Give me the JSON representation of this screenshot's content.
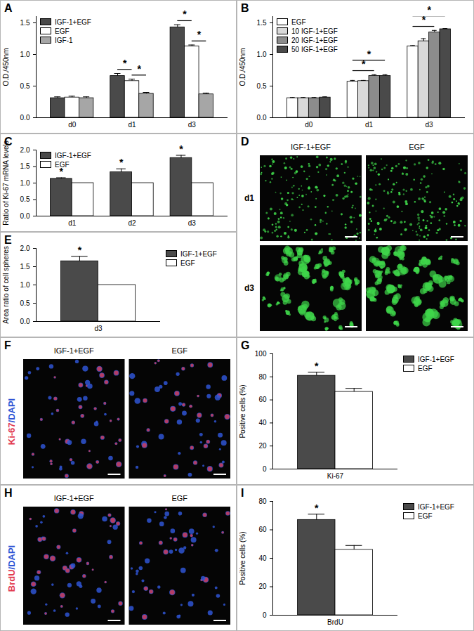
{
  "chart_data": [
    {
      "panel": "A",
      "type": "bar",
      "ylabel": "O.D./450nm",
      "categories": [
        "d0",
        "d1",
        "d3"
      ],
      "series": [
        {
          "name": "IGF-1+EGF",
          "color": "#4a4a4a",
          "values": [
            0.31,
            0.66,
            1.43
          ],
          "errors": [
            0.02,
            0.04,
            0.04
          ]
        },
        {
          "name": "EGF",
          "color": "#ffffff",
          "values": [
            0.32,
            0.58,
            1.13
          ],
          "errors": [
            0.02,
            0.03,
            0.02
          ]
        },
        {
          "name": "IGF-1",
          "color": "#a6a6a6",
          "values": [
            0.31,
            0.38,
            0.37
          ],
          "errors": [
            0.02,
            0.02,
            0.02
          ]
        }
      ],
      "ylim": [
        0,
        1.6
      ],
      "yticks": [
        {
          "value": 0,
          "label": "0.0"
        },
        {
          "value": 0.5,
          "label": "0.5"
        },
        {
          "value": 1,
          "label": "1.0"
        },
        {
          "value": 1.5,
          "label": "1.5"
        }
      ],
      "legend": "top-left",
      "significance": [
        {
          "category": "d1",
          "between": [
            "IGF-1+EGF",
            "EGF"
          ],
          "label": "*"
        },
        {
          "category": "d1",
          "between": [
            "EGF",
            "IGF-1"
          ],
          "label": "*"
        },
        {
          "category": "d3",
          "between": [
            "IGF-1+EGF",
            "EGF"
          ],
          "label": "*"
        },
        {
          "category": "d3",
          "between": [
            "EGF",
            "IGF-1"
          ],
          "label": "*"
        }
      ]
    },
    {
      "panel": "B",
      "type": "bar",
      "ylabel": "O.D./450nm",
      "categories": [
        "d0",
        "d1",
        "d3"
      ],
      "series": [
        {
          "name": "EGF",
          "color": "#ffffff",
          "values": [
            0.31,
            0.57,
            1.13
          ],
          "errors": [
            0.01,
            0.02,
            0.01
          ]
        },
        {
          "name": "10 IGF-1+EGF",
          "color": "#d9d9d9",
          "values": [
            0.31,
            0.58,
            1.21
          ],
          "errors": [
            0.01,
            0.01,
            0.04
          ]
        },
        {
          "name": "20 IGF-1+EGF",
          "color": "#8c8c8c",
          "values": [
            0.31,
            0.66,
            1.35
          ],
          "errors": [
            0.01,
            0.02,
            0.03
          ]
        },
        {
          "name": "50 IGF-1+EGF",
          "color": "#4a4a4a",
          "values": [
            0.32,
            0.66,
            1.4
          ],
          "errors": [
            0.01,
            0.02,
            0.01
          ]
        }
      ],
      "ylim": [
        0,
        1.6
      ],
      "yticks": [
        {
          "value": 0,
          "label": "0.0"
        },
        {
          "value": 0.5,
          "label": "0.5"
        },
        {
          "value": 1,
          "label": "1.0"
        },
        {
          "value": 1.5,
          "label": "1.5"
        }
      ],
      "legend": "top-left",
      "significance": [
        {
          "category": "d1",
          "between": [
            "EGF",
            "20 IGF-1+EGF"
          ],
          "label": "*"
        },
        {
          "category": "d1",
          "between": [
            "EGF",
            "50 IGF-1+EGF"
          ],
          "label": "*"
        },
        {
          "category": "d3",
          "between": [
            "EGF",
            "20 IGF-1+EGF"
          ],
          "label": "*"
        },
        {
          "category": "d3",
          "between": [
            "EGF",
            "50 IGF-1+EGF"
          ],
          "label": "*"
        }
      ]
    },
    {
      "panel": "C",
      "type": "bar",
      "ylabel": "Ratio of Ki-67 mRNA levels",
      "categories": [
        "d1",
        "d2",
        "d3"
      ],
      "series": [
        {
          "name": "IGF-1+EGF",
          "color": "#4a4a4a",
          "values": [
            1.13,
            1.33,
            1.76
          ],
          "errors": [
            0.03,
            0.1,
            0.08
          ]
        },
        {
          "name": "EGF",
          "color": "#ffffff",
          "values": [
            1,
            1,
            1
          ],
          "errors": null
        }
      ],
      "ylim": [
        0,
        2
      ],
      "yticks": [
        {
          "value": 0,
          "label": "0.0"
        },
        {
          "value": 0.5,
          "label": "0.5"
        },
        {
          "value": 1,
          "label": "1.0"
        },
        {
          "value": 1.5,
          "label": "1.5"
        },
        {
          "value": 2,
          "label": "2.0"
        }
      ],
      "legend": "top-left",
      "significance": [
        {
          "category": "d1",
          "series": "IGF-1+EGF",
          "label": "*"
        },
        {
          "category": "d2",
          "series": "IGF-1+EGF",
          "label": "*"
        },
        {
          "category": "d3",
          "series": "IGF-1+EGF",
          "label": "*"
        }
      ]
    },
    {
      "panel": "E",
      "type": "bar",
      "ylabel": "Area ratio of cell spheres",
      "categories": [
        "d3"
      ],
      "series": [
        {
          "name": "IGF-1+EGF",
          "color": "#4a4a4a",
          "values": [
            1.65
          ],
          "errors": [
            0.13
          ]
        },
        {
          "name": "EGF",
          "color": "#ffffff",
          "values": [
            1
          ],
          "errors": null
        }
      ],
      "ylim": [
        0,
        2
      ],
      "yticks": [
        {
          "value": 0,
          "label": "0.0"
        },
        {
          "value": 0.5,
          "label": "0.5"
        },
        {
          "value": 1,
          "label": "1.0"
        },
        {
          "value": 1.5,
          "label": "1.5"
        },
        {
          "value": 2,
          "label": "2.0"
        }
      ],
      "legend": "top-right",
      "significance": [
        {
          "category": "d3",
          "series": "IGF-1+EGF",
          "label": "*"
        }
      ]
    },
    {
      "panel": "G",
      "type": "bar",
      "ylabel": "Positive cells (%)",
      "categories": [
        "Ki-67"
      ],
      "series": [
        {
          "name": "IGF-1+EGF",
          "color": "#4a4a4a",
          "values": [
            81
          ],
          "errors": [
            3
          ]
        },
        {
          "name": "EGF",
          "color": "#ffffff",
          "values": [
            67
          ],
          "errors": [
            3
          ]
        }
      ],
      "ylim": [
        0,
        100
      ],
      "yticks": [
        0,
        20,
        40,
        60,
        80,
        100
      ],
      "legend": "top-right",
      "significance": [
        {
          "category": "Ki-67",
          "series": "IGF-1+EGF",
          "label": "*"
        }
      ]
    },
    {
      "panel": "I",
      "type": "bar",
      "ylabel": "Positive cells (%)",
      "categories": [
        "BrdU"
      ],
      "series": [
        {
          "name": "IGF-1+EGF",
          "color": "#4a4a4a",
          "values": [
            67
          ],
          "errors": [
            4
          ]
        },
        {
          "name": "EGF",
          "color": "#ffffff",
          "values": [
            46
          ],
          "errors": [
            3
          ]
        }
      ],
      "ylim": [
        0,
        80
      ],
      "yticks": [
        0,
        20,
        40,
        60,
        80
      ],
      "legend": "top-right",
      "significance": [
        {
          "category": "BrdU",
          "series": "IGF-1+EGF",
          "label": "*"
        }
      ]
    }
  ],
  "image_panels": [
    {
      "panel": "D",
      "columns": [
        "IGF-1+EGF",
        "EGF"
      ],
      "rows": [
        "d1",
        "d3"
      ],
      "color": "#3fd54a"
    },
    {
      "panel": "F",
      "columns": [
        "IGF-1+EGF",
        "EGF"
      ],
      "stain": [
        {
          "text": "Ki-67",
          "color": "#e23a4e"
        },
        {
          "text": "/DAPI",
          "color": "#2f55d4"
        }
      ]
    },
    {
      "panel": "H",
      "columns": [
        "IGF-1+EGF",
        "EGF"
      ],
      "stain": [
        {
          "text": "BrdU",
          "color": "#e23a4e"
        },
        {
          "text": "/DAPI",
          "color": "#2f55d4"
        }
      ]
    }
  ]
}
